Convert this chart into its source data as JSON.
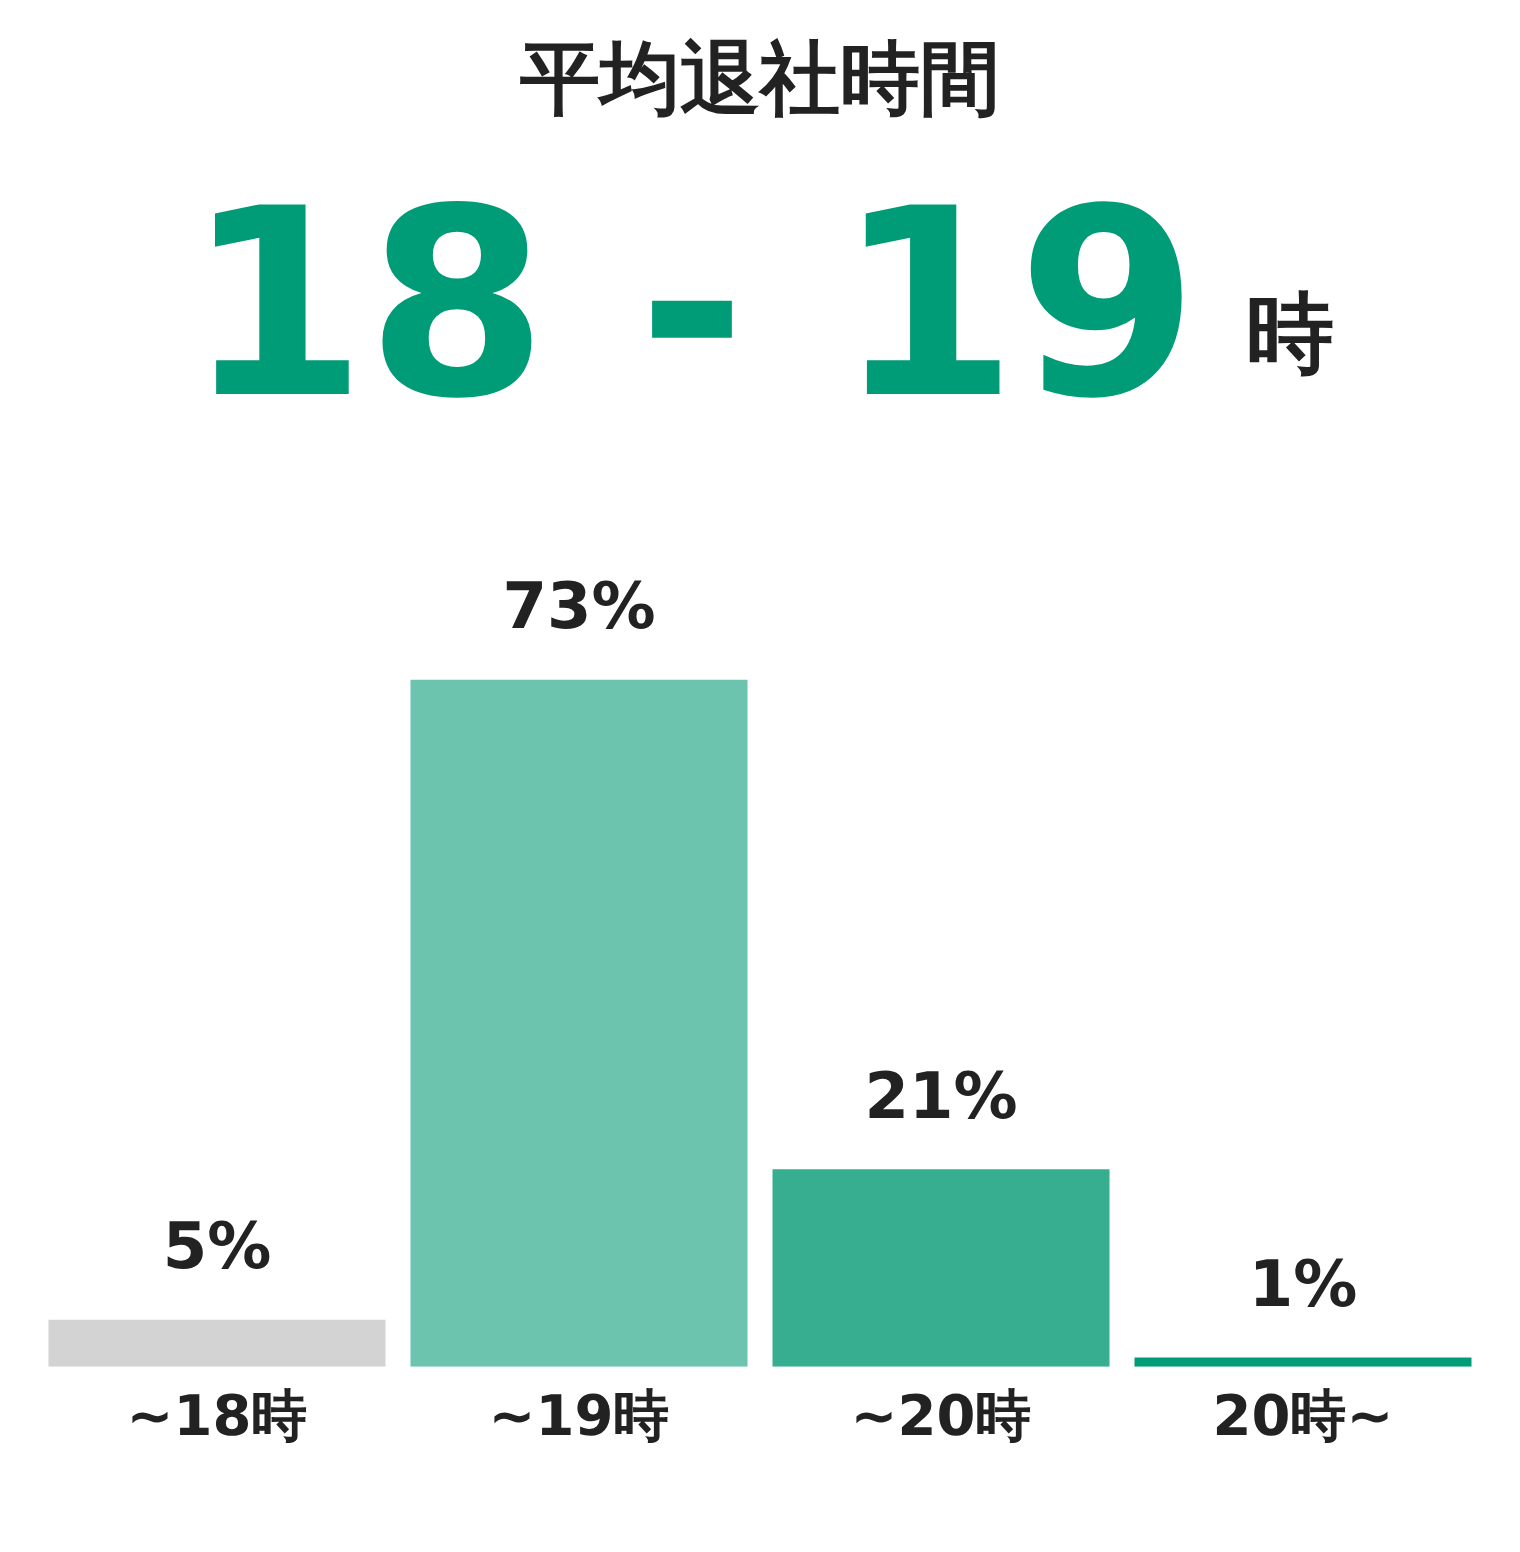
{
  "chart_data": {
    "type": "bar",
    "title": "平均退社時間",
    "subtitle": "18 - 19",
    "annotations": [
      "時"
    ],
    "categories": [
      "~18時",
      "~19時",
      "~20時",
      "20時~"
    ],
    "values": [
      5,
      73,
      21,
      1
    ],
    "colors": [
      "#d3d3d3",
      "#6cc3ae",
      "#38ae91",
      "#009b77"
    ],
    "value_labels": [
      "5%",
      "73%",
      "21%",
      "1%"
    ],
    "grid": false,
    "legend": false
  }
}
